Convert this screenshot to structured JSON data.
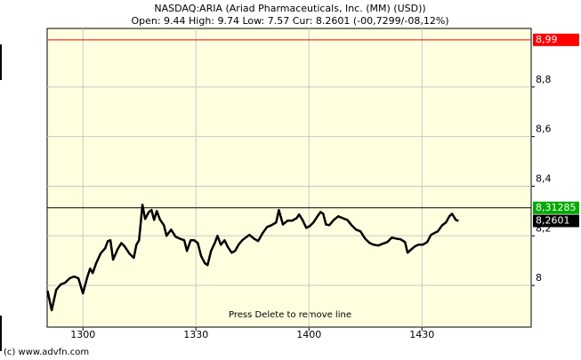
{
  "chart_data": {
    "type": "line",
    "title": "NASDAQ:ARIA (Ariad Pharmaceuticals, Inc. (MM) (USD))",
    "subtitle": "Open: 9.44 High: 9.74 Low: 7.57 Cur: 8.2601 (-00,7299/-08,12%)",
    "annotation": "Press Delete to remove line",
    "footer": "(c) www.advfn.com",
    "background": "#ffffe0",
    "grid": true,
    "xlim": [
      770.5,
      899
    ],
    "ylim": [
      7.832,
      9.036
    ],
    "xticks": [
      {
        "value": 780,
        "label": "1300"
      },
      {
        "value": 810,
        "label": "1330"
      },
      {
        "value": 840,
        "label": "1400"
      },
      {
        "value": 870,
        "label": "1430"
      }
    ],
    "yticks": [
      8,
      {
        "value": 8.2,
        "label": "8,2"
      },
      {
        "value": 8.4,
        "label": "8,4"
      },
      {
        "value": 8.6,
        "label": "8,6"
      },
      {
        "value": 8.8,
        "label": "8,8"
      }
    ],
    "lines": [
      {
        "value": 8.99,
        "label": "8,99",
        "color": "#ff0000"
      },
      {
        "value": 8.31285,
        "label": "8,31285",
        "color": "#000000",
        "box": "#00aa00"
      }
    ],
    "current": {
      "value": 8.2601,
      "label": "8,2601",
      "color": "#000000"
    },
    "series": [
      {
        "color": "#000000",
        "x": [
          770.6,
          771.7,
          772.9,
          774.1,
          775.3,
          776.5,
          777.6,
          778.8,
          780.0,
          781.2,
          781.9,
          782.6,
          783.5,
          784.7,
          785.9,
          786.6,
          787.3,
          788.0,
          789.2,
          790.2,
          791.1,
          792.3,
          793.5,
          794.2,
          794.9,
          795.8,
          796.5,
          797.5,
          798.2,
          798.9,
          799.6,
          800.5,
          801.5,
          802.2,
          803.4,
          804.6,
          805.7,
          806.9,
          807.6,
          808.6,
          809.5,
          810.5,
          811.4,
          812.4,
          813.1,
          814.0,
          815.0,
          815.7,
          816.6,
          817.6,
          818.5,
          819.5,
          820.4,
          821.3,
          822.3,
          823.2,
          824.2,
          825.4,
          826.5,
          827.7,
          828.9,
          830.1,
          831.3,
          832.0,
          833.1,
          834.3,
          835.5,
          836.7,
          837.4,
          838.3,
          839.3,
          840.2,
          841.2,
          842.1,
          843.1,
          843.8,
          844.5,
          845.4,
          846.6,
          847.8,
          849.0,
          850.2,
          851.3,
          852.5,
          853.7,
          854.9,
          856.1,
          857.2,
          858.4,
          859.6,
          860.8,
          862.0,
          863.1,
          864.3,
          865.5,
          866.2,
          867.2,
          868.1,
          869.1,
          870.2,
          871.4,
          872.4,
          873.3,
          874.2,
          875.4,
          876.4,
          877.3,
          878.0,
          879.0,
          879.7
        ],
        "values": [
          7.979,
          7.9,
          7.982,
          8.004,
          8.011,
          8.029,
          8.036,
          8.029,
          7.968,
          8.036,
          8.068,
          8.05,
          8.089,
          8.129,
          8.15,
          8.179,
          8.182,
          8.104,
          8.146,
          8.171,
          8.157,
          8.129,
          8.111,
          8.164,
          8.182,
          8.325,
          8.268,
          8.296,
          8.304,
          8.264,
          8.3,
          8.264,
          8.243,
          8.2,
          8.225,
          8.196,
          8.189,
          8.182,
          8.139,
          8.182,
          8.182,
          8.171,
          8.118,
          8.089,
          8.082,
          8.139,
          8.171,
          8.2,
          8.164,
          8.182,
          8.154,
          8.132,
          8.139,
          8.164,
          8.182,
          8.193,
          8.204,
          8.189,
          8.179,
          8.211,
          8.236,
          8.243,
          8.254,
          8.304,
          8.246,
          8.261,
          8.261,
          8.271,
          8.286,
          8.264,
          8.232,
          8.239,
          8.254,
          8.275,
          8.296,
          8.289,
          8.246,
          8.243,
          8.264,
          8.279,
          8.271,
          8.264,
          8.243,
          8.225,
          8.218,
          8.189,
          8.171,
          8.164,
          8.161,
          8.168,
          8.175,
          8.193,
          8.189,
          8.186,
          8.175,
          8.132,
          8.146,
          8.157,
          8.164,
          8.164,
          8.175,
          8.204,
          8.211,
          8.218,
          8.243,
          8.254,
          8.279,
          8.289,
          8.264,
          8.2601
        ]
      }
    ]
  }
}
